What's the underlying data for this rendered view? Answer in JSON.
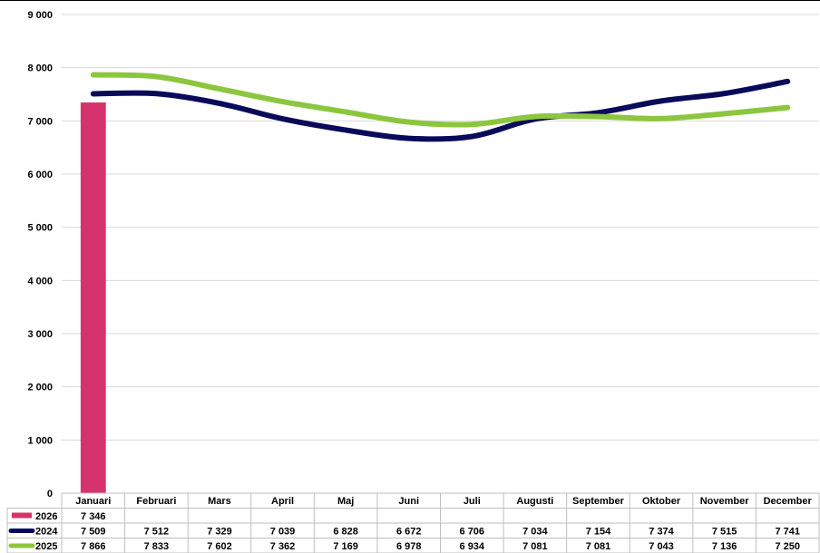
{
  "chart_data": {
    "type": "bar-line",
    "ylim": [
      0,
      9000
    ],
    "yticks": [
      "0",
      "1 000",
      "2 000",
      "3 000",
      "4 000",
      "5 000",
      "6 000",
      "7 000",
      "8 000",
      "9 000"
    ],
    "ytick_values": [
      0,
      1000,
      2000,
      3000,
      4000,
      5000,
      6000,
      7000,
      8000,
      9000
    ],
    "grid": true,
    "categories": [
      "Januari",
      "Februari",
      "Mars",
      "April",
      "Maj",
      "Juni",
      "Juli",
      "Augusti",
      "September",
      "Oktober",
      "November",
      "December"
    ],
    "series": [
      {
        "name": "2026",
        "kind": "bar",
        "color": "#d6336c",
        "values": [
          7346,
          null,
          null,
          null,
          null,
          null,
          null,
          null,
          null,
          null,
          null,
          null
        ],
        "labels": [
          "7 346",
          "",
          "",
          "",
          "",
          "",
          "",
          "",
          "",
          "",
          "",
          ""
        ]
      },
      {
        "name": "2024",
        "kind": "line",
        "color": "#0a0a5a",
        "values": [
          7509,
          7512,
          7329,
          7039,
          6828,
          6672,
          6706,
          7034,
          7154,
          7374,
          7515,
          7741
        ],
        "labels": [
          "7 509",
          "7 512",
          "7 329",
          "7 039",
          "6 828",
          "6 672",
          "6 706",
          "7 034",
          "7 154",
          "7 374",
          "7 515",
          "7 741"
        ]
      },
      {
        "name": "2025",
        "kind": "line",
        "color": "#8cc63f",
        "values": [
          7866,
          7833,
          7602,
          7362,
          7169,
          6978,
          6934,
          7081,
          7081,
          7043,
          7136,
          7250
        ],
        "labels": [
          "7 866",
          "7 833",
          "7 602",
          "7 362",
          "7 169",
          "6 978",
          "6 934",
          "7 081",
          "7 081",
          "7 043",
          "7 136",
          "7 250"
        ]
      }
    ],
    "legend": "data-table"
  }
}
